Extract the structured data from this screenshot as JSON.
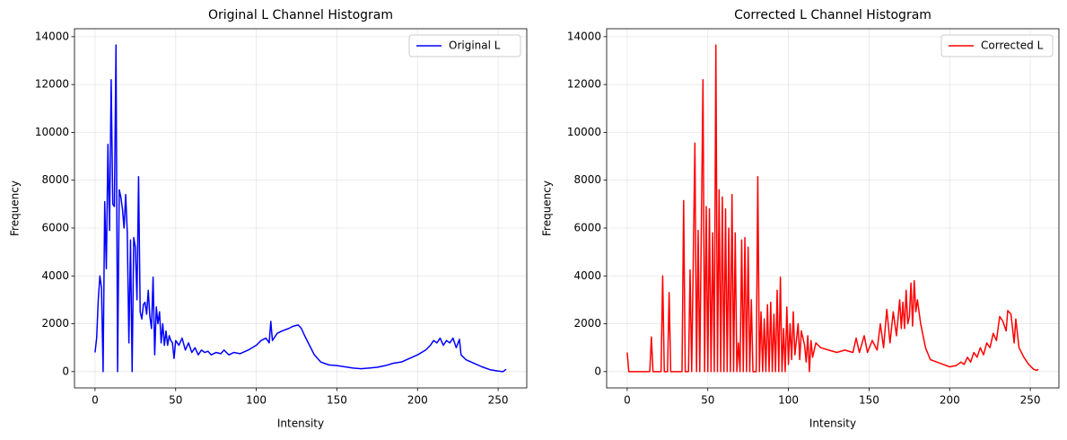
{
  "chart_data": [
    {
      "type": "line",
      "title": "Original L Channel Histogram",
      "xlabel": "Intensity",
      "ylabel": "Frequency",
      "x": [
        0,
        1,
        2,
        3,
        4,
        5,
        6,
        7,
        8,
        9,
        10,
        11,
        12,
        13,
        14,
        15,
        16,
        17,
        18,
        19,
        20,
        21,
        22,
        23,
        24,
        25,
        26,
        27,
        28,
        29,
        30,
        31,
        32,
        33,
        34,
        35,
        36,
        37,
        38,
        39,
        40,
        41,
        42,
        43,
        44,
        45,
        46,
        47,
        48,
        49,
        50,
        52,
        54,
        56,
        58,
        60,
        62,
        64,
        66,
        68,
        70,
        72,
        75,
        78,
        80,
        83,
        86,
        90,
        95,
        100,
        103,
        106,
        108,
        109,
        110,
        113,
        116,
        120,
        123,
        126,
        128,
        130,
        133,
        136,
        140,
        145,
        150,
        155,
        160,
        165,
        170,
        175,
        180,
        185,
        190,
        195,
        200,
        205,
        208,
        210,
        212,
        214,
        216,
        218,
        220,
        222,
        224,
        226,
        227,
        230,
        235,
        240,
        245,
        250,
        253,
        255
      ],
      "series": [
        {
          "name": "Original L",
          "color": "#0000ff",
          "values": [
            800,
            1400,
            3000,
            4000,
            3500,
            0,
            7100,
            4300,
            9500,
            5900,
            12200,
            7000,
            6900,
            13650,
            0,
            7600,
            7300,
            6800,
            6000,
            7400,
            5800,
            1200,
            5500,
            0,
            5600,
            5200,
            3000,
            8150,
            2500,
            2200,
            2800,
            2900,
            2400,
            3400,
            2300,
            1800,
            3950,
            700,
            2700,
            2000,
            2500,
            1200,
            2000,
            1100,
            1700,
            1100,
            1500,
            1300,
            1200,
            550,
            1300,
            1100,
            1400,
            900,
            1200,
            800,
            1000,
            700,
            900,
            800,
            850,
            700,
            800,
            750,
            900,
            700,
            800,
            750,
            900,
            1100,
            1300,
            1400,
            1200,
            2100,
            1300,
            1600,
            1700,
            1800,
            1900,
            1950,
            1800,
            1500,
            1100,
            700,
            400,
            280,
            250,
            200,
            150,
            120,
            150,
            180,
            250,
            350,
            400,
            550,
            700,
            900,
            1100,
            1300,
            1200,
            1400,
            1100,
            1300,
            1200,
            1400,
            1000,
            1350,
            700,
            500,
            350,
            200,
            80,
            20,
            0,
            100
          ]
        }
      ],
      "xlim": [
        -12.75,
        267.75
      ],
      "ylim": [
        -682,
        14332
      ],
      "xticks": [
        0,
        50,
        100,
        150,
        200,
        250
      ],
      "yticks": [
        0,
        2000,
        4000,
        6000,
        8000,
        10000,
        12000,
        14000
      ],
      "grid": true,
      "legend": "upper right"
    },
    {
      "type": "line",
      "title": "Corrected L Channel Histogram",
      "xlabel": "Intensity",
      "ylabel": "Frequency",
      "x": [
        0,
        1,
        14,
        15,
        16,
        21,
        22,
        23,
        25,
        26,
        27,
        34,
        35,
        36,
        38,
        39,
        40,
        42,
        43,
        44,
        45,
        47,
        48,
        49,
        50,
        51,
        52,
        53,
        54,
        55,
        56,
        57,
        58,
        59,
        60,
        61,
        62,
        63,
        64,
        65,
        66,
        67,
        68,
        69,
        70,
        71,
        72,
        73,
        74,
        75,
        76,
        77,
        78,
        80,
        81,
        82,
        83,
        84,
        85,
        86,
        87,
        88,
        89,
        90,
        91,
        92,
        93,
        94,
        95,
        96,
        97,
        98,
        99,
        100,
        101,
        102,
        103,
        104,
        106,
        107,
        108,
        110,
        111,
        112,
        113,
        114,
        115,
        117,
        120,
        125,
        130,
        135,
        140,
        142,
        144,
        147,
        149,
        152,
        155,
        157,
        159,
        161,
        163,
        165,
        167,
        169,
        170,
        171,
        172,
        173,
        174,
        175,
        176,
        177,
        178,
        179,
        180,
        182,
        185,
        188,
        192,
        196,
        200,
        204,
        207,
        209,
        211,
        213,
        215,
        217,
        219,
        221,
        223,
        225,
        227,
        229,
        231,
        233,
        235,
        236,
        238,
        240,
        241,
        243,
        246,
        249,
        252,
        254,
        255
      ],
      "series": [
        {
          "name": "Corrected L",
          "color": "#ff0000",
          "values": [
            800,
            0,
            0,
            1450,
            0,
            0,
            4000,
            0,
            0,
            3300,
            0,
            0,
            7150,
            0,
            0,
            4250,
            0,
            9550,
            0,
            5900,
            0,
            12200,
            0,
            6900,
            0,
            6800,
            0,
            5800,
            0,
            13650,
            0,
            7600,
            0,
            7300,
            0,
            6800,
            0,
            6000,
            0,
            7400,
            0,
            5800,
            0,
            1200,
            0,
            5500,
            0,
            5600,
            0,
            5200,
            0,
            3000,
            0,
            0,
            8150,
            0,
            2500,
            0,
            2200,
            0,
            2800,
            0,
            2900,
            0,
            2400,
            0,
            3400,
            0,
            3950,
            0,
            1800,
            0,
            2700,
            300,
            2000,
            500,
            2500,
            700,
            2000,
            500,
            1700,
            1100,
            400,
            1500,
            0,
            1300,
            600,
            1200,
            1000,
            900,
            800,
            900,
            800,
            1400,
            800,
            1500,
            800,
            1300,
            900,
            2000,
            1000,
            2600,
            1200,
            2500,
            1500,
            3000,
            1800,
            2900,
            1800,
            3400,
            2000,
            2300,
            3700,
            1900,
            3800,
            2500,
            3000,
            2000,
            1000,
            500,
            400,
            300,
            200,
            250,
            400,
            300,
            600,
            400,
            800,
            600,
            1000,
            700,
            1200,
            1000,
            1600,
            1300,
            2300,
            2100,
            1700,
            2550,
            2400,
            1200,
            2200,
            1000,
            600,
            300,
            100,
            50,
            100
          ]
        }
      ],
      "xlim": [
        -12.75,
        267.75
      ],
      "ylim": [
        -682,
        14332
      ],
      "xticks": [
        0,
        50,
        100,
        150,
        200,
        250
      ],
      "yticks": [
        0,
        2000,
        4000,
        6000,
        8000,
        10000,
        12000,
        14000
      ],
      "grid": true,
      "legend": "upper right"
    }
  ]
}
